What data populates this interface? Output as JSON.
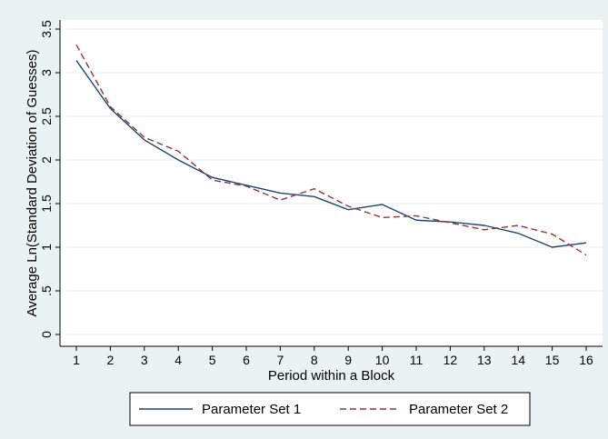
{
  "chart_data": {
    "type": "line",
    "title": "",
    "xlabel": "Period within a Block",
    "ylabel": "Average Ln(Standard Deviation of Guesses)",
    "x": [
      1,
      2,
      3,
      4,
      5,
      6,
      7,
      8,
      9,
      10,
      11,
      12,
      13,
      14,
      15,
      16
    ],
    "xlim": [
      1,
      16
    ],
    "ylim": [
      0,
      3.5
    ],
    "x_ticks": [
      "1",
      "2",
      "3",
      "4",
      "5",
      "6",
      "7",
      "8",
      "9",
      "10",
      "11",
      "12",
      "13",
      "14",
      "15",
      "16"
    ],
    "y_ticks": [
      {
        "value": 0,
        "label": "0"
      },
      {
        "value": 0.5,
        "label": ".5"
      },
      {
        "value": 1,
        "label": "1"
      },
      {
        "value": 1.5,
        "label": "1.5"
      },
      {
        "value": 2,
        "label": "2"
      },
      {
        "value": 2.5,
        "label": "2.5"
      },
      {
        "value": 3,
        "label": "3"
      },
      {
        "value": 3.5,
        "label": "3.5"
      }
    ],
    "grid": true,
    "legend_position": "bottom",
    "series": [
      {
        "name": "Parameter Set 1",
        "color": "#1a476f",
        "dash": "solid",
        "values": [
          3.14,
          2.59,
          2.23,
          2.0,
          1.8,
          1.71,
          1.62,
          1.58,
          1.43,
          1.49,
          1.31,
          1.29,
          1.25,
          1.16,
          1.0,
          1.05
        ]
      },
      {
        "name": "Parameter Set 2",
        "color": "#90353b",
        "dash": "dashed",
        "values": [
          3.32,
          2.61,
          2.26,
          2.1,
          1.77,
          1.7,
          1.54,
          1.67,
          1.47,
          1.34,
          1.36,
          1.28,
          1.2,
          1.25,
          1.15,
          0.91
        ]
      }
    ]
  }
}
